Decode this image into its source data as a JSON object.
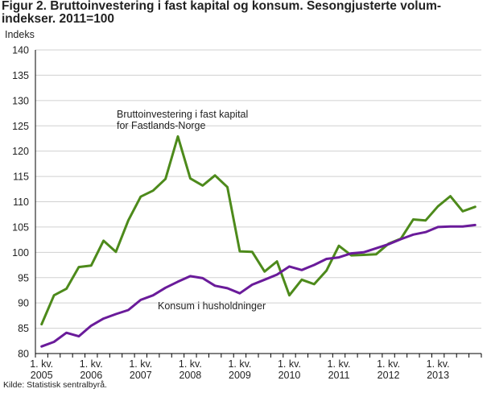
{
  "figure": {
    "title": "Figur 2. Bruttoinvestering i fast kapital og konsum. Sesongjusterte volum-indekser. 2011=100",
    "source": "Kilde: Statistisk sentralbyrå."
  },
  "colors": {
    "investment": "#4d8a1b",
    "consumption": "#6a1b9a",
    "grid": "#d0d0d0",
    "axis": "#000000"
  },
  "chart_data": {
    "type": "line",
    "title": "Figur 2. Bruttoinvestering i fast kapital og konsum. Sesongjusterte volum-indekser. 2011=100",
    "ylabel": "Indeks",
    "xlabel": "",
    "ylim": [
      80,
      140
    ],
    "yticks": [
      80,
      85,
      90,
      95,
      100,
      105,
      110,
      115,
      120,
      125,
      130,
      135,
      140
    ],
    "grid": "horizontal",
    "x": [
      "2005K1",
      "2005K2",
      "2005K3",
      "2005K4",
      "2006K1",
      "2006K2",
      "2006K3",
      "2006K4",
      "2007K1",
      "2007K2",
      "2007K3",
      "2007K4",
      "2008K1",
      "2008K2",
      "2008K3",
      "2008K4",
      "2009K1",
      "2009K2",
      "2009K3",
      "2009K4",
      "2010K1",
      "2010K2",
      "2010K3",
      "2010K4",
      "2011K1",
      "2011K2",
      "2011K3",
      "2011K4",
      "2012K1",
      "2012K2",
      "2012K3",
      "2012K4",
      "2013K1",
      "2013K2",
      "2013K3",
      "2013K4"
    ],
    "xtick_labels": [
      {
        "line1": "1. kv.",
        "line2": "2005"
      },
      {
        "line1": "1. kv.",
        "line2": "2006"
      },
      {
        "line1": "1. kv.",
        "line2": "2007"
      },
      {
        "line1": "1. kv.",
        "line2": "2008"
      },
      {
        "line1": "1. kv.",
        "line2": "2009"
      },
      {
        "line1": "1. kv.",
        "line2": "2010"
      },
      {
        "line1": "1. kv.",
        "line2": "2011"
      },
      {
        "line1": "1. kv.",
        "line2": "2012"
      },
      {
        "line1": "1. kv.",
        "line2": "2013"
      }
    ],
    "series": [
      {
        "key": "investment",
        "annotation": [
          "Bruttoinvestering i fast kapital",
          "for Fastlands-Norge"
        ],
        "values": [
          85.8,
          91.5,
          92.8,
          97.1,
          97.4,
          102.3,
          100.1,
          106.3,
          111.0,
          112.2,
          114.5,
          122.9,
          114.6,
          113.2,
          115.2,
          112.9,
          100.2,
          100.1,
          96.2,
          98.2,
          91.5,
          94.6,
          93.7,
          96.4,
          101.3,
          99.4,
          99.5,
          99.6,
          101.7,
          102.7,
          106.5,
          106.3,
          109.1,
          111.1,
          108.1,
          109.0
        ]
      },
      {
        "key": "consumption",
        "annotation": [
          "Konsum i husholdninger"
        ],
        "values": [
          81.4,
          82.3,
          84.1,
          83.4,
          85.5,
          86.9,
          87.8,
          88.6,
          90.6,
          91.5,
          93.0,
          94.2,
          95.3,
          94.9,
          93.4,
          92.9,
          91.9,
          93.6,
          94.6,
          95.6,
          97.2,
          96.5,
          97.5,
          98.7,
          99.0,
          99.8,
          100.0,
          100.8,
          101.6,
          102.6,
          103.5,
          104.0,
          105.0,
          105.1,
          105.1,
          105.4
        ]
      }
    ]
  }
}
